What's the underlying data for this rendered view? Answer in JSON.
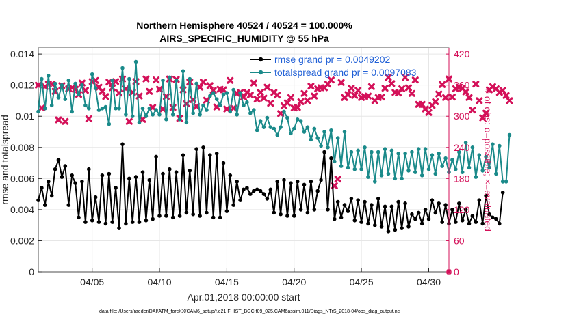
{
  "chart_data": {
    "type": "line",
    "title": "Northern Hemisphere 40524 / 40524 = 100.000%",
    "subtitle": "AIRS_SPECIFIC_HUMIDITY @ 55 hPa",
    "xlabel": "Apr.01,2018 00:00:00 start",
    "ylabel": "rmse and totalspread",
    "y2label": "# of obs: o=possible; ×=evaluated",
    "xlim": [
      0,
      30.5
    ],
    "ylim": [
      0,
      0.0144
    ],
    "y2lim": [
      0,
      432
    ],
    "xticks": [
      4,
      9,
      14,
      19,
      24,
      29
    ],
    "xtick_labels": [
      "04/05",
      "04/10",
      "04/15",
      "04/20",
      "04/25",
      "04/30"
    ],
    "yticks": [
      0,
      0.002,
      0.004,
      0.006,
      0.008,
      0.01,
      0.012,
      0.014
    ],
    "ytick_labels": [
      "0",
      "0.002",
      "0.004",
      "0.006",
      "0.008",
      "0.01",
      "0.012",
      "0.014"
    ],
    "y2ticks": [
      0,
      60,
      120,
      180,
      240,
      300,
      360,
      420
    ],
    "y2tick_labels": [
      "0",
      "60",
      "120",
      "180",
      "240",
      "300",
      "360",
      "420"
    ],
    "grid": true,
    "legend_position": "top-right",
    "step_days": 0.25,
    "series": [
      {
        "name": "rmse grand pr = 0.0049202",
        "color": "#000000",
        "marker": "dot",
        "values": [
          0.0046,
          0.0054,
          0.0043,
          0.0058,
          0.0049,
          0.0066,
          0.0072,
          0.0061,
          0.0068,
          0.0043,
          0.0062,
          0.0057,
          0.0035,
          0.0058,
          0.0032,
          0.0066,
          0.0033,
          0.0048,
          0.0032,
          0.0062,
          0.0031,
          0.0063,
          0.0032,
          0.0054,
          0.0028,
          0.0082,
          0.0031,
          0.006,
          0.0032,
          0.0061,
          0.0032,
          0.0064,
          0.0033,
          0.0059,
          0.0034,
          0.0074,
          0.0036,
          0.0063,
          0.0036,
          0.0066,
          0.0035,
          0.0064,
          0.0036,
          0.0075,
          0.0038,
          0.0065,
          0.0037,
          0.0079,
          0.0036,
          0.008,
          0.0038,
          0.0075,
          0.0035,
          0.0076,
          0.0035,
          0.007,
          0.0039,
          0.0062,
          0.0043,
          0.0058,
          0.0046,
          0.0053,
          0.0054,
          0.005,
          0.0052,
          0.0053,
          0.0052,
          0.005,
          0.0047,
          0.0053,
          0.0038,
          0.0058,
          0.0037,
          0.0059,
          0.0036,
          0.0057,
          0.0036,
          0.0058,
          0.004,
          0.0056,
          0.0038,
          0.0058,
          0.004,
          0.0052,
          0.0059,
          0.0077,
          0.004,
          0.0073,
          0.0034,
          0.0045,
          0.0035,
          0.0043,
          0.0039,
          0.0047,
          0.0033,
          0.0046,
          0.0032,
          0.0045,
          0.0031,
          0.0043,
          0.003,
          0.0047,
          0.0029,
          0.0042,
          0.0026,
          0.0042,
          0.0027,
          0.0045,
          0.0028,
          0.0044,
          0.0029,
          0.0037,
          0.0034,
          0.0038,
          0.0031,
          0.004,
          0.0034,
          0.0046,
          0.0038,
          0.0044,
          0.0032,
          0.0043,
          0.0031,
          0.004,
          0.0032,
          0.0044,
          0.0033,
          0.004,
          0.0031,
          0.0036,
          0.0032,
          0.0046,
          0.0031,
          0.0049,
          0.0037,
          0.0035,
          0.0034,
          0.0031,
          0.0051
        ]
      },
      {
        "name": "totalspread grand pr = 0.0097083",
        "color": "#1a8a8a",
        "marker": "dot",
        "values": [
          0.0103,
          0.0124,
          0.0105,
          0.0126,
          0.0107,
          0.0121,
          0.0112,
          0.012,
          0.0111,
          0.0123,
          0.0103,
          0.0121,
          0.0114,
          0.012,
          0.0107,
          0.0105,
          0.0127,
          0.0118,
          0.0104,
          0.0105,
          0.0106,
          0.0095,
          0.0123,
          0.0105,
          0.0105,
          0.0131,
          0.0101,
          0.0124,
          0.01,
          0.0135,
          0.0096,
          0.0105,
          0.01,
          0.0105,
          0.0101,
          0.0104,
          0.0101,
          0.0123,
          0.0098,
          0.0125,
          0.0101,
          0.0123,
          0.0098,
          0.0129,
          0.0096,
          0.0124,
          0.0102,
          0.0121,
          0.0101,
          0.0107,
          0.0104,
          0.0113,
          0.0115,
          0.0111,
          0.0107,
          0.0114,
          0.0115,
          0.0103,
          0.0117,
          0.0101,
          0.0115,
          0.0107,
          0.0109,
          0.0102,
          0.0104,
          0.0091,
          0.0097,
          0.0093,
          0.0099,
          0.0093,
          0.0092,
          0.0088,
          0.0093,
          0.0103,
          0.0099,
          0.0089,
          0.0092,
          0.0098,
          0.0097,
          0.009,
          0.0093,
          0.0085,
          0.0092,
          0.0086,
          0.0081,
          0.009,
          0.008,
          0.0091,
          0.0071,
          0.0086,
          0.0068,
          0.009,
          0.0067,
          0.0077,
          0.0066,
          0.0078,
          0.0066,
          0.008,
          0.0061,
          0.0077,
          0.0058,
          0.0077,
          0.0062,
          0.0079,
          0.0063,
          0.0078,
          0.006,
          0.0076,
          0.006,
          0.0076,
          0.0065,
          0.0077,
          0.0064,
          0.0079,
          0.0062,
          0.0079,
          0.0066,
          0.0075,
          0.0063,
          0.0076,
          0.0068,
          0.0073,
          0.0064,
          0.0072,
          0.0066,
          0.0077,
          0.0064,
          0.0083,
          0.0067,
          0.008,
          0.0061,
          0.0075,
          0.0065,
          0.0074,
          0.0067,
          0.0082,
          0.0063,
          0.0081,
          0.0058,
          0.0058,
          0.0088
        ]
      },
      {
        "name": "# of obs evaluated",
        "color": "#d41159",
        "marker": "x",
        "axis": "right",
        "values": [
          360,
          316,
          357,
          362,
          362,
          348,
          293,
          359,
          290,
          353,
          355,
          352,
          342,
          364,
          350,
          295,
          367,
          369,
          356,
          348,
          338,
          366,
          355,
          367,
          345,
          372,
          353,
          290,
          346,
          367,
          339,
          294,
          372,
          348,
          317,
          370,
          352,
          314,
          338,
          372,
          317,
          371,
          296,
          351,
          324,
          366,
          332,
          319,
          356,
          366,
          331,
          359,
          350,
          318,
          352,
          351,
          314,
          369,
          316,
          344,
          346,
          337,
          346,
          341,
          364,
          333,
          346,
          335,
          356,
          325,
          346,
          341,
          305,
          320,
          326,
          336,
          316,
          317,
          328,
          344,
          330,
          358,
          339,
          353,
          355,
          355,
          362,
          370,
          166,
          179,
          365,
          336,
          342,
          354,
          340,
          350,
          336,
          338,
          339,
          357,
          330,
          336,
          337,
          354,
          375,
          363,
          346,
          345,
          353,
          375,
          355,
          344,
          370,
          323,
          323,
          314,
          307,
          321,
          328,
          343,
          361,
          336,
          372,
          337,
          353,
          356,
          354,
          347,
          336,
          312,
          362,
          330,
          297,
          306,
          351,
          357,
          353,
          346,
          350,
          340,
          330
        ]
      },
      {
        "name": "# of obs possible",
        "color": "#d41159",
        "marker": "o",
        "axis": "right",
        "values": []
      }
    ],
    "footnote": "data file: /Users/raeder/DAI/ATM_forcXX/CAM6_setup/f.e21.FHIST_BGC.f09_025.CAM6assim.011/Diags_NTrS_2018-04/obs_diag_output.nc"
  }
}
